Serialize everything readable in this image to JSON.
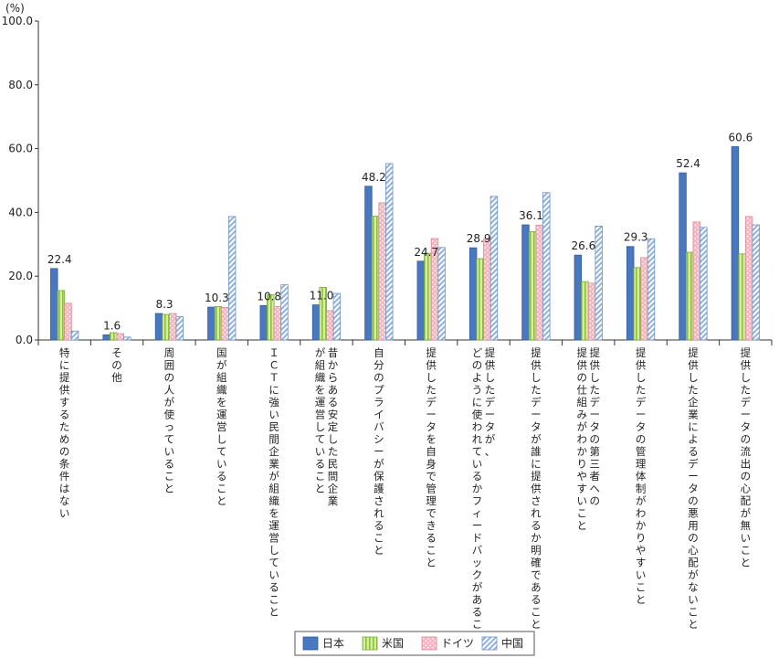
{
  "chart_data": {
    "type": "bar",
    "unit_label": "(%)",
    "ylim": [
      0,
      100
    ],
    "yticks": [
      "0.0",
      "20.0",
      "40.0",
      "60.0",
      "80.0",
      "100.0"
    ],
    "categories": [
      "特に提供するための条件はない",
      "その他",
      "周囲の人が使っていること",
      "国が組織を運営していること",
      "ＩＣＴに強い民間企業が組織を運営していること",
      "昔からある安定した民間企業が組織を運営していること",
      "自分のプライバシーが保護されること",
      "提供したデータを自身で管理できること",
      "提供したデータが、どのように使われているかフィードバックがあること",
      "提供したデータが誰に提供されるか明確であること",
      "提供したデータの第三者への提供の仕組みがわかりやすいこと",
      "提供したデータの管理体制がわかりやすいこと",
      "提供した企業によるデータの悪用の心配がないこと",
      "提供したデータの流出の心配が無いこと"
    ],
    "series": [
      {
        "name": "日本",
        "color": "#4a78c0",
        "pattern": "solid",
        "values": [
          22.4,
          1.6,
          8.3,
          10.3,
          10.8,
          11.0,
          48.2,
          24.7,
          28.9,
          36.1,
          26.6,
          29.3,
          52.4,
          60.6
        ]
      },
      {
        "name": "米国",
        "color": "#b4d97a",
        "pattern": "vertical-stripes",
        "values": [
          15.5,
          2.3,
          8.0,
          10.5,
          14.2,
          16.5,
          38.8,
          27.2,
          25.5,
          34.0,
          18.3,
          22.7,
          27.5,
          27.0
        ]
      },
      {
        "name": "ドイツ",
        "color": "#f4b7c0",
        "pattern": "dots",
        "values": [
          11.5,
          2.0,
          8.3,
          10.2,
          10.5,
          9.2,
          43.0,
          31.8,
          31.6,
          36.0,
          17.8,
          25.8,
          37.0,
          38.7
        ]
      },
      {
        "name": "中国",
        "color": "#a9c4e4",
        "pattern": "diagonal-stripes",
        "values": [
          2.8,
          0.9,
          7.3,
          38.7,
          17.3,
          14.6,
          55.3,
          29.0,
          45.0,
          46.2,
          35.7,
          31.7,
          35.3,
          36.1
        ]
      }
    ],
    "data_labels_series": "日本",
    "data_labels": [
      "22.4",
      "1.6",
      "8.3",
      "10.3",
      "10.8",
      "11.0",
      "48.2",
      "24.7",
      "28.9",
      "36.1",
      "26.6",
      "29.3",
      "52.4",
      "60.6"
    ],
    "grid": false,
    "legend_position": "bottom-center"
  }
}
